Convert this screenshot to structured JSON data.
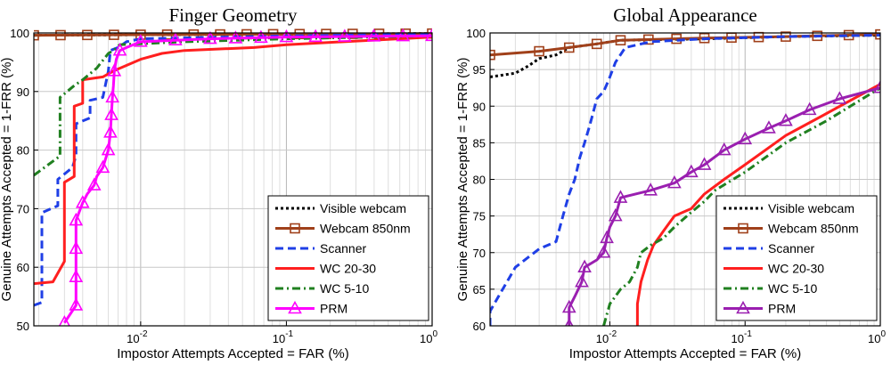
{
  "chart_data": [
    {
      "type": "line",
      "title": "Finger Geometry",
      "xlabel": "Impostor Attempts Accepted = FAR (%)",
      "ylabel": "Genuine Attempts Accepted = 1-FRR (%)",
      "xscale": "log",
      "xlim": [
        0.00185,
        1
      ],
      "ylim": [
        50,
        100
      ],
      "yticks": [
        50,
        60,
        70,
        80,
        90,
        100
      ],
      "xticks": [
        {
          "v": 0.01,
          "label": "10^-2"
        },
        {
          "v": 0.1,
          "label": "10^-1"
        },
        {
          "v": 1,
          "label": "10^0"
        }
      ],
      "grid": true,
      "legend": "bottom-right",
      "series": [
        {
          "name": "Visible webcam",
          "color": "#000000",
          "dash": "3,3",
          "marker": "none",
          "points": [
            [
              0.00185,
              99.6
            ],
            [
              0.01,
              99.7
            ],
            [
              1,
              99.9
            ]
          ]
        },
        {
          "name": "Webcam 850nm",
          "color": "#a0401a",
          "dash": "",
          "marker": "square",
          "points": [
            [
              0.00185,
              99.6
            ],
            [
              0.01,
              99.7
            ],
            [
              1,
              99.9
            ]
          ]
        },
        {
          "name": "Scanner",
          "color": "#1f3fe6",
          "dash": "9,5",
          "marker": "none",
          "points": [
            [
              0.00185,
              53.5
            ],
            [
              0.0021,
              54
            ],
            [
              0.0021,
              69.3
            ],
            [
              0.0027,
              70.5
            ],
            [
              0.0027,
              75
            ],
            [
              0.0034,
              77
            ],
            [
              0.0036,
              79
            ],
            [
              0.0036,
              84.5
            ],
            [
              0.0045,
              85.5
            ],
            [
              0.0045,
              88.5
            ],
            [
              0.0055,
              89
            ],
            [
              0.006,
              93.5
            ],
            [
              0.0062,
              97
            ],
            [
              0.007,
              97.5
            ],
            [
              0.008,
              98.5
            ],
            [
              0.01,
              99
            ],
            [
              0.1,
              99.5
            ],
            [
              1,
              99.8
            ]
          ]
        },
        {
          "name": "WC 20-30",
          "color": "#ff1f1f",
          "dash": "",
          "marker": "none",
          "points": [
            [
              0.00185,
              57.2
            ],
            [
              0.0025,
              57.5
            ],
            [
              0.003,
              61
            ],
            [
              0.003,
              74.5
            ],
            [
              0.0035,
              75.5
            ],
            [
              0.0035,
              87.5
            ],
            [
              0.004,
              88
            ],
            [
              0.004,
              92
            ],
            [
              0.0055,
              92.5
            ],
            [
              0.0065,
              93.5
            ],
            [
              0.01,
              95.5
            ],
            [
              0.014,
              96.5
            ],
            [
              0.02,
              97
            ],
            [
              0.06,
              97.5
            ],
            [
              0.1,
              98
            ],
            [
              1,
              99.3
            ]
          ]
        },
        {
          "name": "WC 5-10",
          "color": "#208020",
          "dash": "9,4,2,4",
          "marker": "none",
          "points": [
            [
              0.00185,
              75.7
            ],
            [
              0.0028,
              79
            ],
            [
              0.0028,
              89
            ],
            [
              0.0035,
              91
            ],
            [
              0.004,
              92
            ],
            [
              0.005,
              94
            ],
            [
              0.006,
              96.5
            ],
            [
              0.0065,
              97
            ],
            [
              0.0072,
              98
            ],
            [
              0.02,
              98.5
            ],
            [
              0.1,
              99
            ],
            [
              1,
              99.5
            ]
          ]
        },
        {
          "name": "PRM",
          "color": "#ff00ff",
          "dash": "",
          "marker": "triangle",
          "points": [
            [
              0.003,
              50.5
            ],
            [
              0.0036,
              53.5
            ],
            [
              0.0036,
              68
            ],
            [
              0.004,
              71
            ],
            [
              0.0043,
              72.5
            ],
            [
              0.0048,
              74
            ],
            [
              0.005,
              75.5
            ],
            [
              0.0055,
              77
            ],
            [
              0.006,
              80
            ],
            [
              0.0062,
              83
            ],
            [
              0.0063,
              86
            ],
            [
              0.0064,
              89
            ],
            [
              0.0065,
              91
            ],
            [
              0.0066,
              93.5
            ],
            [
              0.0068,
              95.5
            ],
            [
              0.0072,
              97
            ],
            [
              0.008,
              97.5
            ],
            [
              0.01,
              98.5
            ],
            [
              0.03,
              99
            ],
            [
              0.1,
              99.3
            ],
            [
              1,
              99.5
            ]
          ]
        }
      ]
    },
    {
      "type": "line",
      "title": "Global Appearance",
      "xlabel": "Impostor Attempts Accepted = FAR (%)",
      "ylabel": "Genuine Attempts Accepted = 1-FRR (%)",
      "xscale": "log",
      "xlim": [
        0.0013,
        1
      ],
      "ylim": [
        60,
        100
      ],
      "yticks": [
        60,
        65,
        70,
        75,
        80,
        85,
        90,
        95,
        100
      ],
      "xticks": [
        {
          "v": 0.01,
          "label": "10^-2"
        },
        {
          "v": 0.1,
          "label": "10^-1"
        },
        {
          "v": 1,
          "label": "10^0"
        }
      ],
      "grid": true,
      "legend": "bottom-right",
      "series": [
        {
          "name": "Visible webcam",
          "color": "#000000",
          "dash": "3,3",
          "marker": "none",
          "points": [
            [
              0.0013,
              94
            ],
            [
              0.002,
              94.5
            ],
            [
              0.0025,
              95.5
            ],
            [
              0.003,
              96.5
            ],
            [
              0.004,
              97
            ],
            [
              0.005,
              98
            ],
            [
              0.008,
              98.5
            ],
            [
              0.012,
              99
            ],
            [
              0.05,
              99.2
            ],
            [
              0.2,
              99.5
            ],
            [
              1,
              99.7
            ]
          ]
        },
        {
          "name": "Webcam 850nm",
          "color": "#a0401a",
          "dash": "",
          "marker": "square",
          "points": [
            [
              0.0013,
              97
            ],
            [
              0.003,
              97.5
            ],
            [
              0.005,
              98
            ],
            [
              0.008,
              98.5
            ],
            [
              0.012,
              99
            ],
            [
              0.05,
              99.3
            ],
            [
              0.2,
              99.5
            ],
            [
              1,
              99.8
            ]
          ]
        },
        {
          "name": "Scanner",
          "color": "#1f3fe6",
          "dash": "9,5",
          "marker": "none",
          "points": [
            [
              0.0013,
              60
            ],
            [
              0.0013,
              62
            ],
            [
              0.0015,
              64
            ],
            [
              0.0018,
              66.5
            ],
            [
              0.002,
              68
            ],
            [
              0.003,
              70.5
            ],
            [
              0.004,
              71.5
            ],
            [
              0.0045,
              75
            ],
            [
              0.005,
              78
            ],
            [
              0.0055,
              80
            ],
            [
              0.006,
              83
            ],
            [
              0.0065,
              85
            ],
            [
              0.007,
              87
            ],
            [
              0.0075,
              89
            ],
            [
              0.008,
              91
            ],
            [
              0.009,
              92
            ],
            [
              0.0095,
              93
            ],
            [
              0.01,
              94
            ],
            [
              0.011,
              96
            ],
            [
              0.013,
              98
            ],
            [
              0.02,
              98.8
            ],
            [
              0.05,
              99.2
            ],
            [
              0.2,
              99.5
            ],
            [
              1,
              99.7
            ]
          ]
        },
        {
          "name": "WC 20-30",
          "color": "#ff1f1f",
          "dash": "",
          "marker": "none",
          "points": [
            [
              0.016,
              60
            ],
            [
              0.016,
              63
            ],
            [
              0.017,
              66
            ],
            [
              0.019,
              69
            ],
            [
              0.021,
              71
            ],
            [
              0.025,
              73
            ],
            [
              0.03,
              75
            ],
            [
              0.04,
              76
            ],
            [
              0.05,
              78
            ],
            [
              0.07,
              80
            ],
            [
              0.1,
              82
            ],
            [
              0.2,
              86
            ],
            [
              0.4,
              89
            ],
            [
              1,
              93
            ]
          ]
        },
        {
          "name": "WC 5-10",
          "color": "#208020",
          "dash": "9,4,2,4",
          "marker": "none",
          "points": [
            [
              0.009,
              60
            ],
            [
              0.01,
              63
            ],
            [
              0.012,
              65
            ],
            [
              0.014,
              66
            ],
            [
              0.016,
              68
            ],
            [
              0.017,
              70
            ],
            [
              0.02,
              71
            ],
            [
              0.025,
              72
            ],
            [
              0.03,
              73.5
            ],
            [
              0.04,
              75.5
            ],
            [
              0.05,
              77
            ],
            [
              0.06,
              78.5
            ],
            [
              0.1,
              81
            ],
            [
              0.2,
              85
            ],
            [
              0.4,
              88
            ],
            [
              1,
              92.5
            ]
          ]
        },
        {
          "name": "PRM",
          "color": "#9a1fb0",
          "dash": "",
          "marker": "triangle",
          "points": [
            [
              0.005,
              60
            ],
            [
              0.005,
              62.5
            ],
            [
              0.0055,
              64
            ],
            [
              0.0062,
              66
            ],
            [
              0.0065,
              68
            ],
            [
              0.008,
              69
            ],
            [
              0.009,
              70
            ],
            [
              0.0095,
              72
            ],
            [
              0.01,
              73.5
            ],
            [
              0.011,
              75
            ],
            [
              0.012,
              77.5
            ],
            [
              0.02,
              78.5
            ],
            [
              0.03,
              79.5
            ],
            [
              0.04,
              81
            ],
            [
              0.05,
              82
            ],
            [
              0.07,
              84
            ],
            [
              0.1,
              85.5
            ],
            [
              0.15,
              87
            ],
            [
              0.2,
              88
            ],
            [
              0.3,
              89.5
            ],
            [
              0.5,
              91
            ],
            [
              1,
              92.5
            ]
          ]
        }
      ]
    }
  ]
}
